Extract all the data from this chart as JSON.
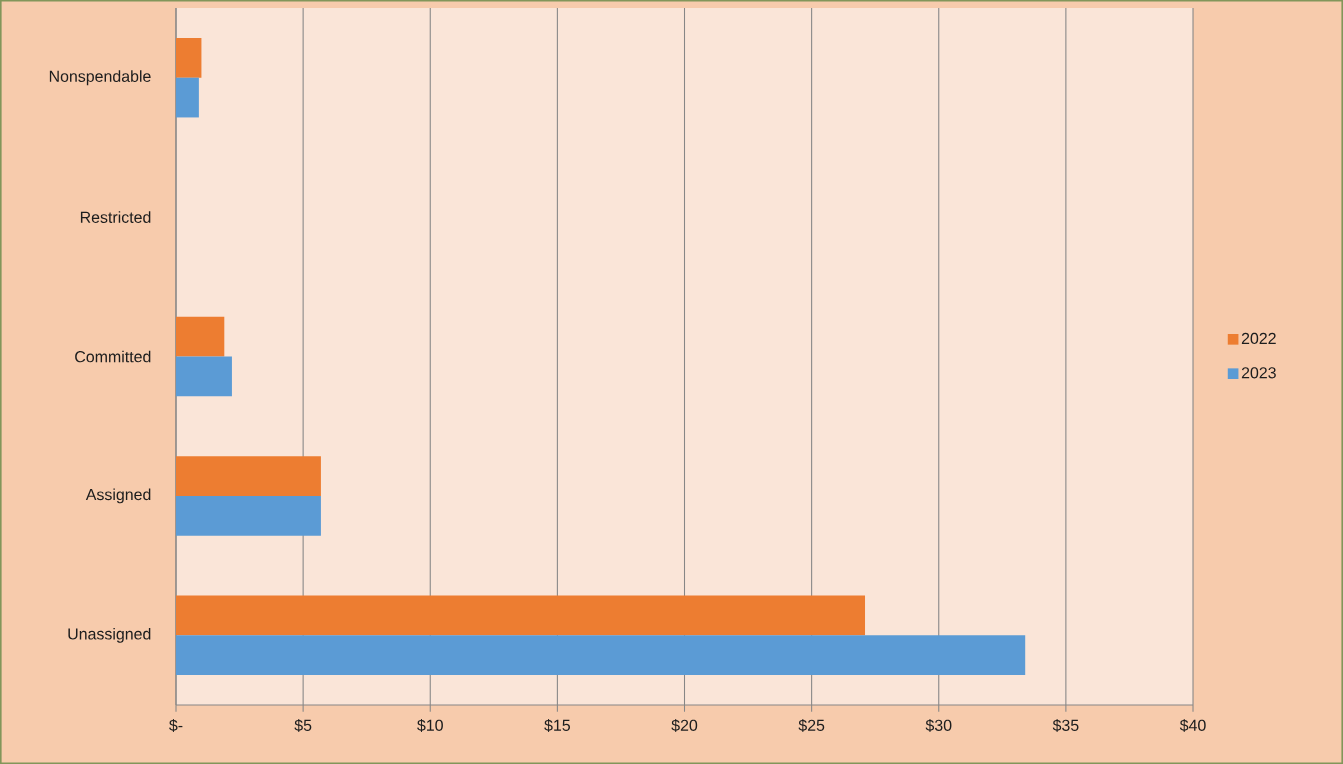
{
  "chart_data": {
    "type": "bar",
    "orientation": "horizontal",
    "categories": [
      "Nonspendable",
      "Restricted",
      "Committed",
      "Assigned",
      "Unassigned"
    ],
    "series": [
      {
        "name": "2022",
        "color": "#ed7d31",
        "values": [
          1.0,
          0,
          1.9,
          5.7,
          27.1
        ]
      },
      {
        "name": "2023",
        "color": "#5b9bd5",
        "values": [
          0.9,
          0,
          2.2,
          5.7,
          33.4
        ]
      }
    ],
    "xlim": [
      0,
      40
    ],
    "xticks": [
      {
        "value": 0,
        "label": "$-"
      },
      {
        "value": 5,
        "label": "$5"
      },
      {
        "value": 10,
        "label": "$10"
      },
      {
        "value": 15,
        "label": "$15"
      },
      {
        "value": 20,
        "label": "$20"
      },
      {
        "value": 25,
        "label": "$25"
      },
      {
        "value": 30,
        "label": "$30"
      },
      {
        "value": 35,
        "label": "$35"
      },
      {
        "value": 40,
        "label": "$40"
      }
    ],
    "grid": "x",
    "legend": "right"
  }
}
